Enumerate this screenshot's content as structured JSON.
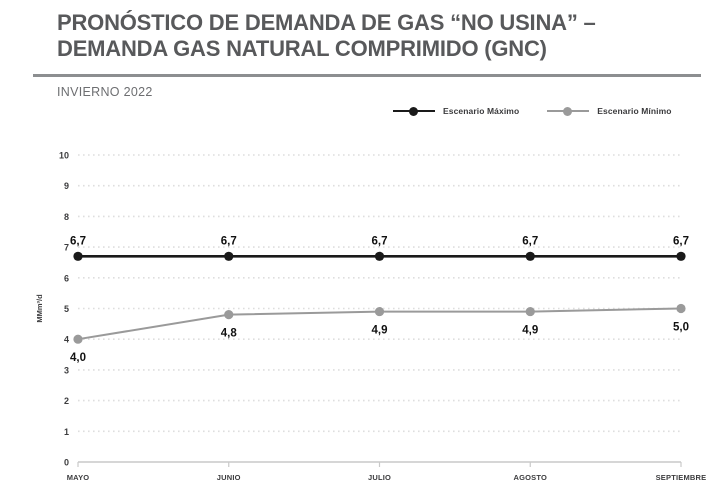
{
  "header": {
    "title_line1": "PRONÓSTICO DE DEMANDA DE GAS “NO USINA” –",
    "title_line2": "DEMANDA GAS NATURAL COMPRIMIDO (GNC)",
    "subtitle": "INVIERNO 2022"
  },
  "colors": {
    "title": "#58595b",
    "divider": "#8c8e90",
    "subtitle": "#6d6e71",
    "grid": "#dedede",
    "axis": "#c9c9c9",
    "tick_label": "#3c3c3e",
    "data_label": "#111111",
    "series_max": "#1a1a1a",
    "series_min": "#9a9a9a"
  },
  "chart_data": {
    "type": "line",
    "title": "PRONÓSTICO DE DEMANDA DE GAS “NO USINA” – DEMANDA GAS NATURAL COMPRIMIDO (GNC)",
    "subtitle": "INVIERNO 2022",
    "categories": [
      "MAYO",
      "JUNIO",
      "JULIO",
      "AGOSTO",
      "SEPTIEMBRE"
    ],
    "series": [
      {
        "name": "Escenario Máximo",
        "color": "#1a1a1a",
        "values": [
          6.7,
          6.7,
          6.7,
          6.7,
          6.7
        ],
        "labels": [
          "6,7",
          "6,7",
          "6,7",
          "6,7",
          "6,7"
        ],
        "label_position": "above"
      },
      {
        "name": "Escenario Mínimo",
        "color": "#9a9a9a",
        "values": [
          4.0,
          4.8,
          4.9,
          4.9,
          5.0
        ],
        "labels": [
          "4,0",
          "4,8",
          "4,9",
          "4,9",
          "5,0"
        ],
        "label_position": "below"
      }
    ],
    "xlabel": "",
    "ylabel": "MMm³/d",
    "ylim": [
      0,
      10
    ],
    "yticks": [
      0,
      1,
      2,
      3,
      4,
      5,
      6,
      7,
      8,
      9,
      10
    ],
    "grid": "horizontal-dotted",
    "legend_position": "top-center"
  }
}
